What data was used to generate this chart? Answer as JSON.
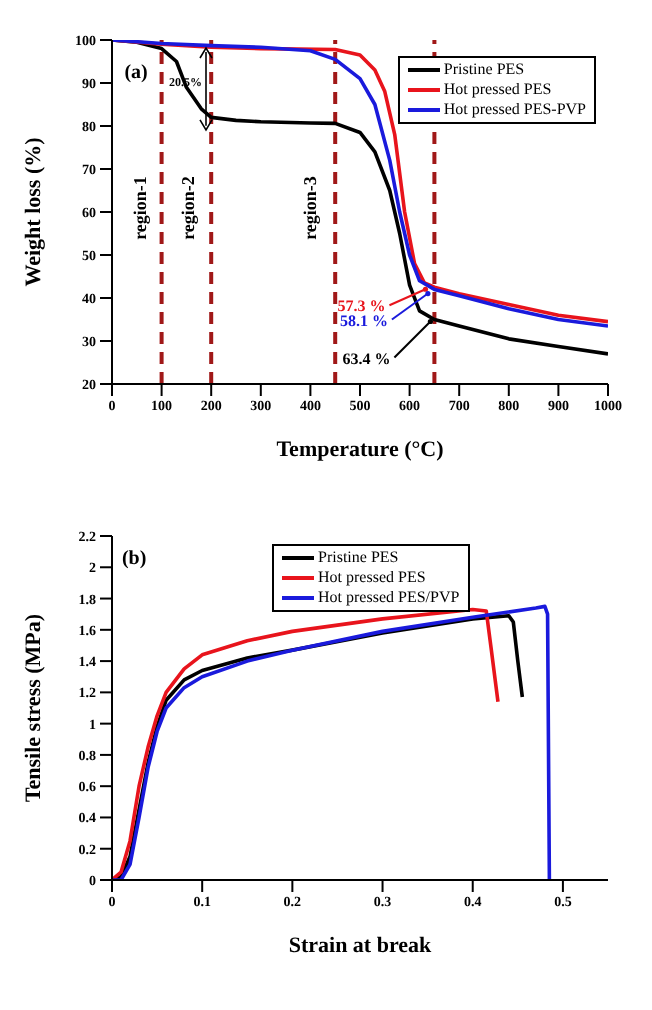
{
  "chart_data": [
    {
      "type": "line",
      "xlabel": "Temperature (°C)",
      "ylabel": "Weight loss (%)",
      "xlim": [
        0,
        1000
      ],
      "xticks": [
        0,
        100,
        200,
        300,
        400,
        500,
        600,
        700,
        800,
        900,
        1000
      ],
      "ylim": [
        20,
        100
      ],
      "yticks": [
        20,
        30,
        40,
        50,
        60,
        70,
        80,
        90,
        100
      ],
      "legend": "top right",
      "grid": false,
      "marker": "none",
      "line_style": "solid",
      "series": [
        {
          "name": "Pristine PES",
          "color": "#000000",
          "x": [
            0,
            50,
            100,
            130,
            150,
            180,
            200,
            250,
            300,
            400,
            450,
            500,
            530,
            560,
            580,
            600,
            620,
            650,
            700,
            800,
            900,
            1000
          ],
          "values": [
            100,
            99.5,
            98,
            95,
            89,
            84,
            82,
            81.3,
            81,
            80.7,
            80.6,
            78.5,
            74,
            65,
            55,
            43,
            37,
            35,
            33.5,
            30.5,
            28.7,
            27
          ]
        },
        {
          "name": "Hot pressed PES",
          "color": "#e8141c",
          "x": [
            0,
            100,
            200,
            300,
            450,
            500,
            530,
            550,
            570,
            590,
            610,
            630,
            650,
            700,
            800,
            900,
            1000
          ],
          "values": [
            100,
            99,
            98.3,
            98,
            97.8,
            96.5,
            93,
            88,
            78,
            60,
            48,
            43.5,
            42.5,
            41,
            38.5,
            36,
            34.5
          ]
        },
        {
          "name": "Hot pressed PES-PVP",
          "color": "#1a1adc",
          "x": [
            0,
            100,
            200,
            300,
            400,
            450,
            500,
            530,
            560,
            580,
            600,
            620,
            650,
            700,
            800,
            900,
            1000
          ],
          "values": [
            100,
            99.2,
            98.7,
            98.3,
            97.5,
            95.5,
            91,
            85,
            72,
            60,
            50,
            44,
            42,
            40.5,
            37.5,
            35,
            33.5
          ]
        }
      ],
      "ref_lines": [
        {
          "axis": "x",
          "value": 100,
          "color": "#a01818",
          "line_style": "dashed"
        },
        {
          "axis": "x",
          "value": 200,
          "color": "#a01818",
          "line_style": "dashed"
        },
        {
          "axis": "x",
          "value": 450,
          "color": "#a01818",
          "line_style": "dashed"
        },
        {
          "axis": "x",
          "value": 650,
          "color": "#a01818",
          "line_style": "dashed"
        }
      ],
      "annotations": [
        "(a)",
        "region-1",
        "region-2",
        "region-3",
        "20.5%",
        {
          "text": "57.3 %",
          "x": 640,
          "y": 42.5
        },
        {
          "text": "58.1 %",
          "x": 645,
          "y": 41.5
        },
        {
          "text": "63.4 %",
          "x": 650,
          "y": 35
        }
      ]
    },
    {
      "type": "line",
      "xlabel": "Strain at break",
      "ylabel": "Tensile stress (MPa)",
      "xlim": [
        0,
        0.55
      ],
      "xticks": [
        0,
        0.1,
        0.2,
        0.3,
        0.4,
        0.5
      ],
      "ylim": [
        0,
        2.2
      ],
      "yticks": [
        0,
        0.2,
        0.4,
        0.6,
        0.8,
        1,
        1.2,
        1.4,
        1.6,
        1.8,
        2,
        2.2
      ],
      "legend": "top",
      "grid": false,
      "marker": "none",
      "line_style": "solid",
      "series": [
        {
          "name": "Pristine PES",
          "color": "#000000",
          "x": [
            0,
            0.01,
            0.02,
            0.03,
            0.04,
            0.05,
            0.06,
            0.08,
            0.1,
            0.15,
            0.2,
            0.3,
            0.4,
            0.44,
            0.445,
            0.45,
            0.455
          ],
          "values": [
            0,
            0.02,
            0.15,
            0.45,
            0.75,
            0.98,
            1.15,
            1.28,
            1.34,
            1.42,
            1.47,
            1.58,
            1.67,
            1.69,
            1.65,
            1.4,
            1.17
          ]
        },
        {
          "name": "Hot pressed PES",
          "color": "#e8141c",
          "x": [
            0,
            0.01,
            0.02,
            0.03,
            0.04,
            0.05,
            0.06,
            0.08,
            0.1,
            0.15,
            0.2,
            0.3,
            0.4,
            0.415,
            0.42,
            0.428
          ],
          "values": [
            0,
            0.05,
            0.25,
            0.6,
            0.85,
            1.05,
            1.2,
            1.35,
            1.44,
            1.53,
            1.59,
            1.67,
            1.73,
            1.72,
            1.5,
            1.14
          ]
        },
        {
          "name": "Hot pressed PES/PVP",
          "color": "#1a1adc",
          "x": [
            0,
            0.01,
            0.02,
            0.03,
            0.04,
            0.05,
            0.06,
            0.08,
            0.1,
            0.15,
            0.2,
            0.3,
            0.4,
            0.47,
            0.48,
            0.483,
            0.485
          ],
          "values": [
            0,
            0,
            0.1,
            0.4,
            0.72,
            0.95,
            1.1,
            1.23,
            1.3,
            1.4,
            1.47,
            1.59,
            1.68,
            1.74,
            1.75,
            1.7,
            0
          ]
        }
      ],
      "annotations": [
        "(b)"
      ]
    }
  ]
}
